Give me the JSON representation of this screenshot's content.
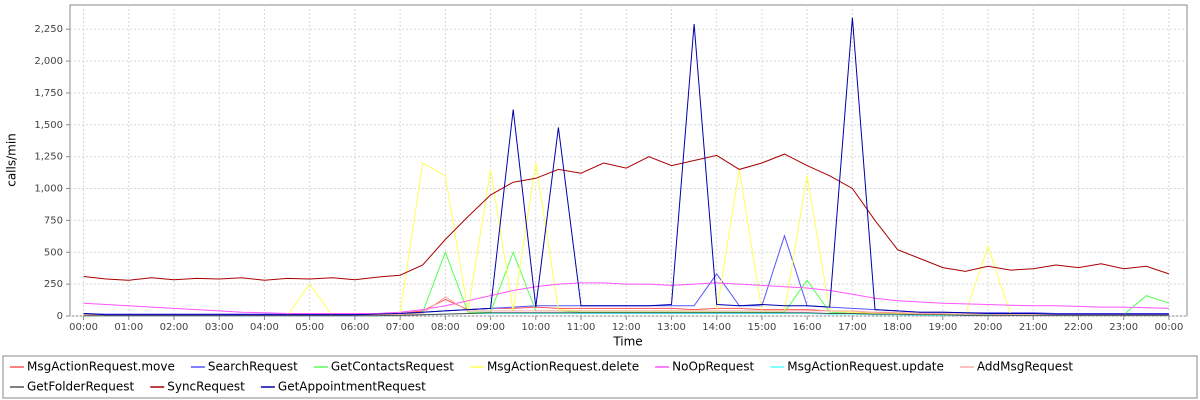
{
  "chart_data": {
    "type": "line",
    "y_label": "calls/min",
    "x_label": "Time",
    "x": [
      0,
      0.5,
      1,
      1.5,
      2,
      2.5,
      3,
      3.5,
      4,
      4.5,
      5,
      5.5,
      6,
      6.5,
      7,
      7.5,
      8,
      8.5,
      9,
      9.5,
      10,
      10.5,
      11,
      11.5,
      12,
      12.5,
      13,
      13.5,
      14,
      14.5,
      15,
      15.5,
      16,
      16.5,
      17,
      17.5,
      18,
      18.5,
      19,
      19.5,
      20,
      20.5,
      21,
      21.5,
      22,
      22.5,
      23,
      23.5,
      24
    ],
    "xlim": [
      -0.3,
      24.4
    ],
    "xticks": [
      {
        "value": 0,
        "label": "00:00"
      },
      {
        "value": 1,
        "label": "01:00"
      },
      {
        "value": 2,
        "label": "02:00"
      },
      {
        "value": 3,
        "label": "03:00"
      },
      {
        "value": 4,
        "label": "04:00"
      },
      {
        "value": 5,
        "label": "05:00"
      },
      {
        "value": 6,
        "label": "06:00"
      },
      {
        "value": 7,
        "label": "07:00"
      },
      {
        "value": 8,
        "label": "08:00"
      },
      {
        "value": 9,
        "label": "09:00"
      },
      {
        "value": 10,
        "label": "10:00"
      },
      {
        "value": 11,
        "label": "11:00"
      },
      {
        "value": 12,
        "label": "12:00"
      },
      {
        "value": 13,
        "label": "13:00"
      },
      {
        "value": 14,
        "label": "14:00"
      },
      {
        "value": 15,
        "label": "15:00"
      },
      {
        "value": 16,
        "label": "16:00"
      },
      {
        "value": 17,
        "label": "17:00"
      },
      {
        "value": 18,
        "label": "18:00"
      },
      {
        "value": 19,
        "label": "19:00"
      },
      {
        "value": 20,
        "label": "20:00"
      },
      {
        "value": 21,
        "label": "21:00"
      },
      {
        "value": 22,
        "label": "22:00"
      },
      {
        "value": 23,
        "label": "23:00"
      },
      {
        "value": 24,
        "label": "00:00"
      }
    ],
    "ylim": [
      0,
      2440
    ],
    "yticks": [
      0,
      250,
      500,
      750,
      {
        "value": 1000,
        "label": "1,000"
      },
      {
        "value": 1250,
        "label": "1,250"
      },
      {
        "value": 1500,
        "label": "1,500"
      },
      {
        "value": 1750,
        "label": "1,750"
      },
      {
        "value": 2000,
        "label": "2,000"
      },
      {
        "value": 2250,
        "label": "2,250"
      }
    ],
    "grid": true,
    "legend": "bottom",
    "series": [
      {
        "name": "MsgActionRequest.move",
        "color": "#ff5555",
        "values": [
          10,
          10,
          10,
          10,
          10,
          10,
          10,
          10,
          10,
          10,
          10,
          10,
          10,
          10,
          20,
          40,
          130,
          50,
          60,
          60,
          70,
          60,
          60,
          60,
          60,
          60,
          60,
          50,
          60,
          60,
          50,
          50,
          50,
          40,
          30,
          30,
          20,
          20,
          15,
          15,
          15,
          10,
          10,
          10,
          10,
          10,
          10,
          10,
          10
        ]
      },
      {
        "name": "SearchRequest",
        "color": "#5555ff",
        "values": [
          20,
          15,
          15,
          15,
          15,
          15,
          15,
          15,
          15,
          15,
          15,
          15,
          15,
          15,
          20,
          30,
          40,
          50,
          60,
          70,
          80,
          80,
          80,
          80,
          80,
          80,
          80,
          80,
          330,
          80,
          80,
          630,
          80,
          70,
          60,
          50,
          40,
          30,
          30,
          25,
          25,
          25,
          25,
          20,
          20,
          20,
          20,
          20,
          20
        ]
      },
      {
        "name": "GetContactsRequest",
        "color": "#55ff55",
        "values": [
          5,
          5,
          5,
          5,
          5,
          5,
          5,
          5,
          5,
          5,
          5,
          5,
          5,
          5,
          5,
          30,
          500,
          30,
          30,
          500,
          40,
          40,
          30,
          30,
          30,
          30,
          30,
          30,
          30,
          30,
          30,
          30,
          280,
          30,
          20,
          20,
          15,
          15,
          10,
          10,
          10,
          10,
          10,
          10,
          10,
          10,
          10,
          160,
          100
        ]
      },
      {
        "name": "MsgActionRequest.delete",
        "color": "#ffff55",
        "values": [
          5,
          5,
          5,
          5,
          5,
          5,
          5,
          5,
          5,
          5,
          250,
          5,
          5,
          10,
          20,
          1200,
          1100,
          40,
          1150,
          40,
          1200,
          50,
          40,
          40,
          40,
          40,
          40,
          40,
          40,
          1150,
          40,
          40,
          1100,
          40,
          30,
          20,
          20,
          15,
          15,
          15,
          550,
          10,
          10,
          10,
          10,
          10,
          10,
          10,
          10
        ]
      },
      {
        "name": "NoOpRequest",
        "color": "#ff55ff",
        "values": [
          100,
          90,
          80,
          70,
          60,
          50,
          40,
          30,
          25,
          20,
          20,
          20,
          20,
          20,
          30,
          50,
          80,
          120,
          160,
          200,
          230,
          250,
          260,
          260,
          250,
          250,
          240,
          250,
          260,
          250,
          240,
          230,
          220,
          200,
          170,
          140,
          120,
          110,
          100,
          95,
          90,
          85,
          80,
          80,
          75,
          70,
          70,
          65,
          60
        ]
      },
      {
        "name": "MsgActionRequest.update",
        "color": "#55ffff",
        "values": [
          2,
          2,
          2,
          2,
          2,
          2,
          2,
          2,
          2,
          2,
          2,
          2,
          2,
          2,
          5,
          10,
          15,
          20,
          20,
          20,
          20,
          20,
          20,
          20,
          20,
          20,
          20,
          20,
          20,
          20,
          20,
          20,
          20,
          15,
          15,
          10,
          10,
          5,
          5,
          5,
          5,
          5,
          5,
          5,
          5,
          5,
          5,
          5,
          5
        ]
      },
      {
        "name": "AddMsgRequest",
        "color": "#ffaaaa",
        "values": [
          5,
          5,
          5,
          5,
          5,
          5,
          5,
          5,
          5,
          5,
          5,
          5,
          5,
          5,
          10,
          20,
          150,
          40,
          40,
          40,
          40,
          40,
          40,
          40,
          40,
          40,
          40,
          40,
          40,
          40,
          40,
          40,
          40,
          40,
          40,
          30,
          30,
          20,
          20,
          15,
          15,
          10,
          10,
          10,
          10,
          10,
          10,
          10,
          10
        ]
      },
      {
        "name": "GetFolderRequest",
        "color": "#555555",
        "values": [
          2,
          2,
          2,
          2,
          2,
          2,
          2,
          2,
          2,
          2,
          2,
          2,
          2,
          2,
          5,
          10,
          15,
          20,
          25,
          25,
          25,
          25,
          25,
          25,
          25,
          25,
          25,
          25,
          25,
          25,
          25,
          25,
          25,
          20,
          20,
          15,
          15,
          10,
          10,
          5,
          5,
          5,
          5,
          5,
          5,
          5,
          5,
          5,
          5
        ]
      },
      {
        "name": "SyncRequest",
        "color": "#aa0000",
        "values": [
          310,
          290,
          280,
          300,
          285,
          295,
          290,
          300,
          280,
          295,
          290,
          300,
          285,
          305,
          320,
          400,
          600,
          780,
          950,
          1050,
          1080,
          1150,
          1120,
          1200,
          1160,
          1250,
          1180,
          1220,
          1260,
          1150,
          1200,
          1270,
          1180,
          1100,
          1000,
          750,
          520,
          450,
          380,
          350,
          390,
          360,
          370,
          400,
          380,
          410,
          370,
          390,
          330
        ]
      },
      {
        "name": "GetAppointmentRequest",
        "color": "#0000aa",
        "values": [
          20,
          10,
          10,
          10,
          10,
          10,
          10,
          10,
          10,
          10,
          10,
          10,
          10,
          15,
          20,
          30,
          40,
          50,
          60,
          1620,
          70,
          1480,
          80,
          80,
          80,
          80,
          90,
          2290,
          90,
          80,
          90,
          80,
          80,
          70,
          2340,
          50,
          40,
          30,
          30,
          25,
          20,
          20,
          20,
          15,
          15,
          15,
          15,
          15,
          15
        ]
      }
    ]
  }
}
